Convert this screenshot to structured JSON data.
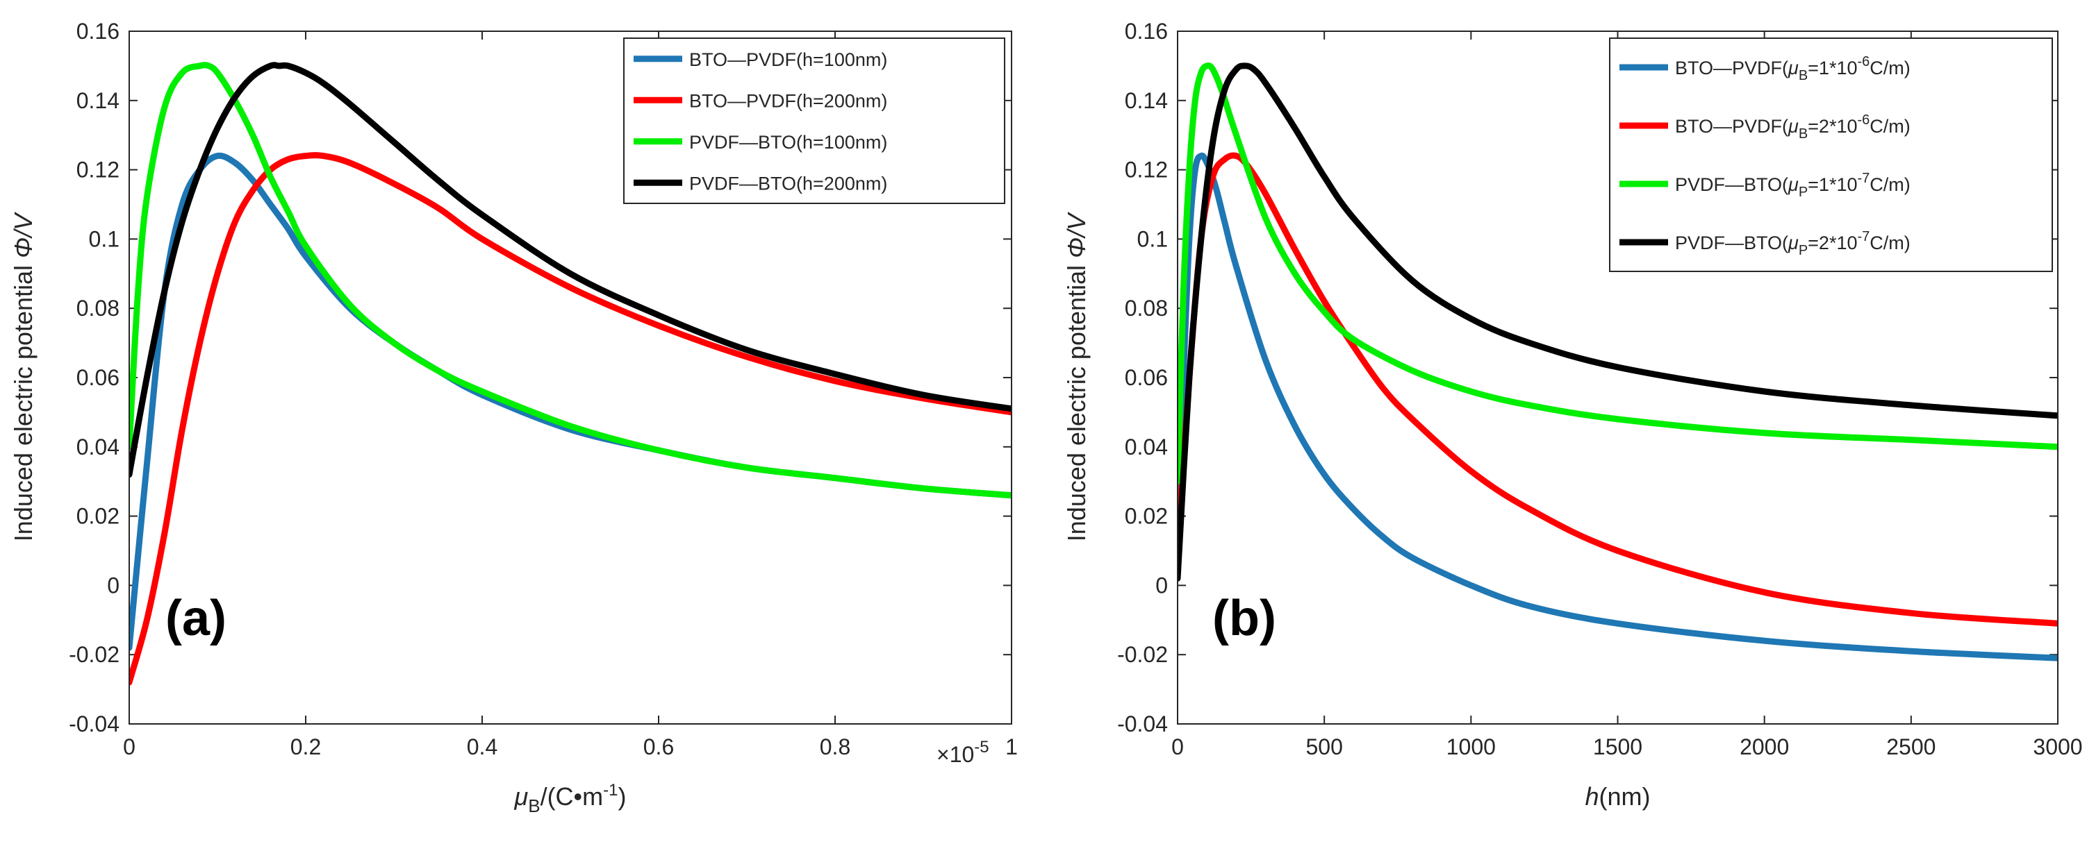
{
  "chart_data": [
    {
      "type": "line",
      "panel_label": "(a)",
      "ylabel": "Induced electric potential Φ/V",
      "ylabel_main": "Induced electric potential ",
      "ylabel_sym": "Φ/V",
      "xlabel": "μB/(C•m-1)",
      "xlabel_parts": {
        "sym": "μ",
        "sub": "B",
        "mid": "/(C•m",
        "sup": "-1",
        "end": ")"
      },
      "x_exponent": {
        "base": "×10",
        "exp": "-5"
      },
      "xlim": [
        0,
        1
      ],
      "ylim": [
        -0.04,
        0.16
      ],
      "xticks": [
        "0",
        "0.2",
        "0.4",
        "0.6",
        "0.8",
        "1"
      ],
      "xtick_values": [
        0,
        0.2,
        0.4,
        0.6,
        0.8,
        1
      ],
      "yticks": [
        "-0.04",
        "-0.02",
        "0",
        "0.02",
        "0.04",
        "0.06",
        "0.08",
        "0.1",
        "0.12",
        "0.14",
        "0.16"
      ],
      "ytick_values": [
        -0.04,
        -0.02,
        0,
        0.02,
        0.04,
        0.06,
        0.08,
        0.1,
        0.12,
        0.14,
        0.16
      ],
      "legend_position": "top-right",
      "series": [
        {
          "name": "BTO—PVDF(h=100nm)",
          "color": "#1f77b4",
          "x": [
            0,
            0.02,
            0.04,
            0.06,
            0.08,
            0.1,
            0.12,
            0.14,
            0.16,
            0.18,
            0.2,
            0.25,
            0.3,
            0.35,
            0.4,
            0.5,
            0.6,
            0.7,
            0.8,
            0.9,
            1.0
          ],
          "y": [
            -0.018,
            0.035,
            0.085,
            0.11,
            0.12,
            0.124,
            0.122,
            0.117,
            0.11,
            0.103,
            0.095,
            0.08,
            0.07,
            0.062,
            0.055,
            0.045,
            0.039,
            0.034,
            0.031,
            0.028,
            0.026
          ]
        },
        {
          "name": "BTO—PVDF(h=200nm)",
          "color": "#ff0000",
          "x": [
            0,
            0.02,
            0.04,
            0.06,
            0.08,
            0.1,
            0.12,
            0.14,
            0.16,
            0.18,
            0.2,
            0.22,
            0.25,
            0.3,
            0.35,
            0.4,
            0.5,
            0.6,
            0.7,
            0.8,
            0.9,
            1.0
          ],
          "y": [
            -0.028,
            -0.01,
            0.015,
            0.045,
            0.07,
            0.09,
            0.105,
            0.114,
            0.12,
            0.123,
            0.124,
            0.124,
            0.122,
            0.116,
            0.109,
            0.1,
            0.086,
            0.075,
            0.066,
            0.059,
            0.054,
            0.05
          ]
        },
        {
          "name": "PVDF—BTO(h=100nm)",
          "color": "#00ee00",
          "x": [
            0,
            0.01,
            0.02,
            0.04,
            0.06,
            0.08,
            0.09,
            0.1,
            0.12,
            0.14,
            0.16,
            0.18,
            0.2,
            0.25,
            0.3,
            0.35,
            0.4,
            0.5,
            0.6,
            0.7,
            0.8,
            0.9,
            1.0
          ],
          "y": [
            0.04,
            0.085,
            0.112,
            0.138,
            0.148,
            0.15,
            0.15,
            0.148,
            0.14,
            0.13,
            0.118,
            0.108,
            0.098,
            0.081,
            0.07,
            0.062,
            0.056,
            0.046,
            0.039,
            0.034,
            0.031,
            0.028,
            0.026
          ]
        },
        {
          "name": "PVDF—BTO(h=200nm)",
          "color": "#000000",
          "x": [
            0,
            0.02,
            0.04,
            0.06,
            0.08,
            0.1,
            0.12,
            0.14,
            0.16,
            0.17,
            0.18,
            0.2,
            0.22,
            0.25,
            0.3,
            0.35,
            0.4,
            0.5,
            0.6,
            0.7,
            0.8,
            0.9,
            1.0
          ],
          "y": [
            0.032,
            0.06,
            0.085,
            0.105,
            0.12,
            0.132,
            0.141,
            0.147,
            0.15,
            0.15,
            0.15,
            0.148,
            0.145,
            0.139,
            0.128,
            0.117,
            0.107,
            0.09,
            0.078,
            0.068,
            0.061,
            0.055,
            0.051
          ]
        }
      ]
    },
    {
      "type": "line",
      "panel_label": "(b)",
      "ylabel": "Induced electric potential Φ/V",
      "ylabel_main": "Induced electric potential ",
      "ylabel_sym": "Φ/V",
      "xlabel": "h(nm)",
      "xlabel_parts": {
        "sym": "h",
        "end": "(nm)"
      },
      "xlim": [
        0,
        3000
      ],
      "ylim": [
        -0.04,
        0.16
      ],
      "xticks": [
        "0",
        "500",
        "1000",
        "1500",
        "2000",
        "2500",
        "3000"
      ],
      "xtick_values": [
        0,
        500,
        1000,
        1500,
        2000,
        2500,
        3000
      ],
      "yticks": [
        "-0.04",
        "-0.02",
        "0",
        "0.02",
        "0.04",
        "0.06",
        "0.08",
        "0.1",
        "0.12",
        "0.14",
        "0.16"
      ],
      "ytick_values": [
        -0.04,
        -0.02,
        0,
        0.02,
        0.04,
        0.06,
        0.08,
        0.1,
        0.12,
        0.14,
        0.16
      ],
      "legend_position": "top-right",
      "series": [
        {
          "name": "BTO—PVDF(μB=1*10-6C/m)",
          "color": "#1f77b4",
          "label_parts": {
            "pre": "BTO—PVDF(",
            "sym": "μ",
            "sub": "B",
            "mid": "=1*10",
            "sup": "-6",
            "end": "C/m)"
          },
          "x": [
            0,
            20,
            40,
            60,
            80,
            100,
            130,
            160,
            200,
            300,
            400,
            500,
            600,
            700,
            800,
            1000,
            1200,
            1500,
            2000,
            2500,
            3000
          ],
          "y": [
            0.01,
            0.06,
            0.1,
            0.12,
            0.124,
            0.122,
            0.115,
            0.105,
            0.092,
            0.065,
            0.046,
            0.032,
            0.022,
            0.014,
            0.008,
            0.0,
            -0.006,
            -0.011,
            -0.016,
            -0.019,
            -0.021
          ]
        },
        {
          "name": "BTO—PVDF(μB=2*10-6C/m)",
          "color": "#ff0000",
          "label_parts": {
            "pre": "BTO—PVDF(",
            "sym": "μ",
            "sub": "B",
            "mid": "=2*10",
            "sup": "-6",
            "end": "C/m)"
          },
          "x": [
            0,
            40,
            80,
            120,
            160,
            200,
            240,
            300,
            400,
            500,
            600,
            700,
            800,
            1000,
            1200,
            1500,
            2000,
            2500,
            3000
          ],
          "y": [
            0.01,
            0.06,
            0.1,
            0.118,
            0.123,
            0.124,
            0.121,
            0.113,
            0.097,
            0.082,
            0.069,
            0.057,
            0.048,
            0.033,
            0.022,
            0.01,
            -0.002,
            -0.008,
            -0.011
          ]
        },
        {
          "name": "PVDF—BTO(μP=1*10-7C/m)",
          "color": "#00ee00",
          "label_parts": {
            "pre": "PVDF—BTO(",
            "sym": "μ",
            "sub": "P",
            "mid": "=1*10",
            "sup": "-7",
            "end": "C/m)"
          },
          "x": [
            0,
            20,
            40,
            60,
            80,
            100,
            120,
            150,
            200,
            300,
            400,
            500,
            600,
            800,
            1000,
            1200,
            1500,
            2000,
            2500,
            3000
          ],
          "y": [
            0.03,
            0.085,
            0.12,
            0.14,
            0.148,
            0.15,
            0.149,
            0.143,
            0.13,
            0.106,
            0.09,
            0.079,
            0.071,
            0.062,
            0.056,
            0.052,
            0.048,
            0.044,
            0.042,
            0.04
          ]
        },
        {
          "name": "PVDF—BTO(μP=2*10-7C/m)",
          "color": "#000000",
          "label_parts": {
            "pre": "PVDF—BTO(",
            "sym": "μ",
            "sub": "P",
            "mid": "=2*10",
            "sup": "-7",
            "end": "C/m)"
          },
          "x": [
            0,
            40,
            80,
            120,
            160,
            200,
            230,
            260,
            300,
            400,
            500,
            600,
            800,
            1000,
            1200,
            1500,
            2000,
            2500,
            3000
          ],
          "y": [
            0.002,
            0.06,
            0.1,
            0.128,
            0.143,
            0.149,
            0.15,
            0.149,
            0.145,
            0.132,
            0.118,
            0.106,
            0.088,
            0.077,
            0.07,
            0.063,
            0.056,
            0.052,
            0.049
          ]
        }
      ]
    }
  ]
}
